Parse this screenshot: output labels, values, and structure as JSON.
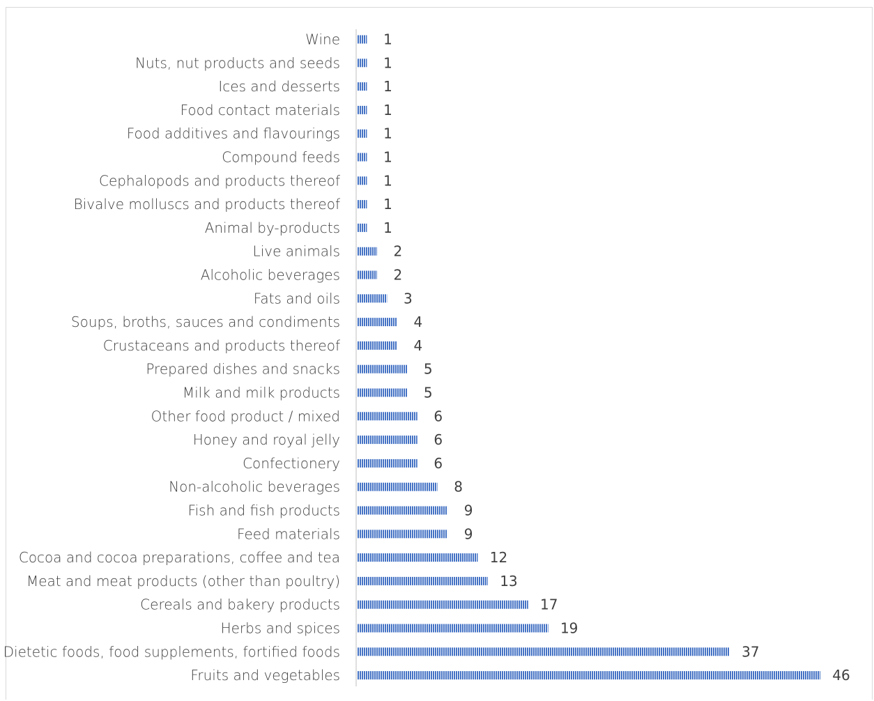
{
  "chart_data": {
    "type": "bar",
    "orientation": "horizontal",
    "categories": [
      "Wine",
      "Nuts, nut products and seeds",
      "Ices and desserts",
      "Food contact materials",
      "Food additives and flavourings",
      "Compound feeds",
      "Cephalopods and products thereof",
      "Bivalve molluscs and products thereof",
      "Animal by-products",
      "Live animals",
      "Alcoholic beverages",
      "Fats and oils",
      "Soups, broths, sauces and condiments",
      "Crustaceans and products thereof",
      "Prepared dishes and snacks",
      "Milk and milk products",
      "Other food product / mixed",
      "Honey and royal jelly",
      "Confectionery",
      "Non-alcoholic beverages",
      "Fish and fish products",
      "Feed materials",
      "Cocoa and cocoa preparations, coffee and tea",
      "Meat and meat products (other than poultry)",
      "Cereals and bakery products",
      "Herbs and spices",
      "Dietetic foods, food supplements, fortified foods",
      "Fruits and vegetables"
    ],
    "values": [
      1,
      1,
      1,
      1,
      1,
      1,
      1,
      1,
      1,
      2,
      2,
      3,
      4,
      4,
      5,
      5,
      6,
      6,
      6,
      8,
      9,
      9,
      12,
      13,
      17,
      19,
      37,
      46
    ],
    "xlim": [
      0,
      46
    ],
    "data_labels": true,
    "grid": false,
    "legend": "none",
    "bar_color": "#4472C4",
    "bar_pattern": "vertical-stripes"
  }
}
